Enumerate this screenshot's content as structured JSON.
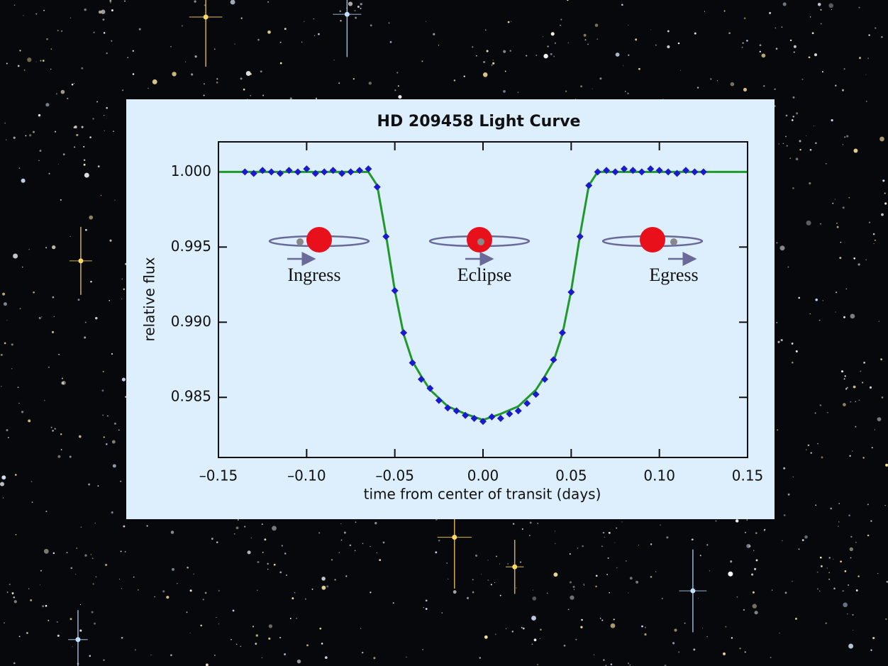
{
  "chart_data": {
    "type": "scatter",
    "title": "HD 209458 Light Curve",
    "x_label": "time from center of transit (days)",
    "y_label": "relative flux",
    "annotations": [
      "Ingress",
      "Eclipse",
      "Egress"
    ],
    "xlim": [
      -0.15,
      0.15
    ],
    "ylim": [
      0.981,
      1.002
    ],
    "xticks": [
      {
        "value": -0.15,
        "label": "–0.15"
      },
      {
        "value": -0.1,
        "label": "–0.10"
      },
      {
        "value": -0.05,
        "label": "–0.05"
      },
      {
        "value": 0,
        "label": "0.00"
      },
      {
        "value": 0.05,
        "label": "0.05"
      },
      {
        "value": 0.1,
        "label": "0.10"
      },
      {
        "value": 0.15,
        "label": "0.15"
      }
    ],
    "yticks": [
      {
        "value": 1.0,
        "label": "1.000"
      },
      0.995,
      {
        "value": 0.99,
        "label": "0.990"
      },
      0.985
    ],
    "series": [
      {
        "type": "line",
        "color": "#1f9a2a",
        "x": [
          -0.15,
          -0.065,
          -0.06,
          -0.055,
          -0.05,
          -0.045,
          -0.04,
          -0.035,
          -0.03,
          -0.02,
          -0.01,
          0,
          0.01,
          0.02,
          0.03,
          0.035,
          0.04,
          0.045,
          0.05,
          0.055,
          0.06,
          0.065,
          0.15
        ],
        "values": [
          1.0,
          1.0,
          0.9991,
          0.9958,
          0.9921,
          0.9892,
          0.9874,
          0.9864,
          0.9855,
          0.9844,
          0.9839,
          0.9835,
          0.9839,
          0.9844,
          0.9855,
          0.9864,
          0.9874,
          0.9892,
          0.9921,
          0.9958,
          0.9991,
          1.0,
          1.0
        ]
      },
      {
        "type": "scatter",
        "color": "#1a1acc",
        "marker": "diamond",
        "x": [
          -0.135,
          -0.13,
          -0.125,
          -0.12,
          -0.115,
          -0.11,
          -0.105,
          -0.1,
          -0.095,
          -0.09,
          -0.085,
          -0.08,
          -0.075,
          -0.07,
          -0.065,
          -0.06,
          -0.055,
          -0.05,
          -0.045,
          -0.04,
          -0.035,
          -0.03,
          -0.025,
          -0.02,
          -0.015,
          -0.01,
          -0.005,
          0,
          0.005,
          0.01,
          0.015,
          0.02,
          0.025,
          0.03,
          0.035,
          0.04,
          0.045,
          0.05,
          0.055,
          0.06,
          0.065,
          0.07,
          0.075,
          0.08,
          0.085,
          0.09,
          0.095,
          0.1,
          0.105,
          0.11,
          0.115,
          0.12,
          0.125
        ],
        "values": [
          1.0,
          0.9999,
          1.0001,
          1.0,
          0.9999,
          1.0001,
          1.0,
          1.0002,
          0.9999,
          1.0,
          1.0001,
          0.9999,
          1.0,
          1.0001,
          1.0002,
          0.999,
          0.9957,
          0.9921,
          0.9893,
          0.9873,
          0.9862,
          0.9856,
          0.9848,
          0.9843,
          0.9841,
          0.9838,
          0.9836,
          0.9834,
          0.9837,
          0.9836,
          0.9839,
          0.9841,
          0.9846,
          0.9852,
          0.9862,
          0.9875,
          0.9893,
          0.992,
          0.9957,
          0.9991,
          1.0,
          1.0001,
          1.0,
          1.0002,
          1.0001,
          1.0,
          1.0002,
          1.0001,
          1.0,
          0.9999,
          1.0001,
          1.0,
          1.0
        ]
      }
    ]
  }
}
